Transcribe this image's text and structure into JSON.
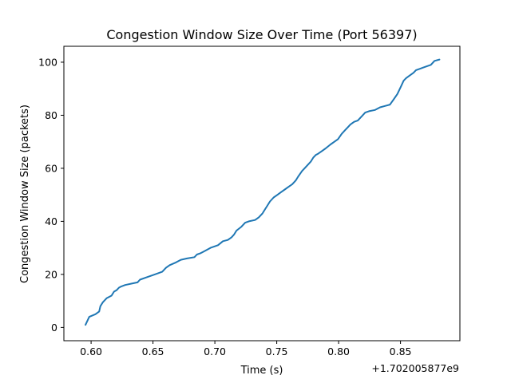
{
  "chart_data": {
    "type": "line",
    "title": "Congestion Window Size Over Time (Port 56397)",
    "xlabel": "Time (s)",
    "ylabel": "Congestion Window Size (packets)",
    "x_offset_label": "+1.702005877e9",
    "xlim": [
      0.578,
      0.898
    ],
    "ylim": [
      -5.0,
      106.0
    ],
    "x_ticks": [
      0.6,
      0.65,
      0.7,
      0.75,
      0.8,
      0.85
    ],
    "x_tick_labels": [
      "0.60",
      "0.65",
      "0.70",
      "0.75",
      "0.80",
      "0.85"
    ],
    "y_ticks": [
      0,
      20,
      40,
      60,
      80,
      100
    ],
    "y_tick_labels": [
      "0",
      "20",
      "40",
      "60",
      "80",
      "100"
    ],
    "grid": false,
    "series": [
      {
        "color": "#1f77b4",
        "x": [
          0.5955,
          0.5985,
          0.6035,
          0.6065,
          0.6075,
          0.6095,
          0.6125,
          0.6165,
          0.6185,
          0.6205,
          0.6225,
          0.6245,
          0.6275,
          0.6325,
          0.6375,
          0.6395,
          0.6455,
          0.6515,
          0.6575,
          0.6605,
          0.6635,
          0.6685,
          0.6725,
          0.6775,
          0.6835,
          0.6855,
          0.6885,
          0.6925,
          0.6965,
          0.7025,
          0.7065,
          0.7105,
          0.7135,
          0.7155,
          0.7175,
          0.7215,
          0.7245,
          0.7275,
          0.7325,
          0.7355,
          0.7385,
          0.7405,
          0.7425,
          0.7445,
          0.7475,
          0.7505,
          0.7535,
          0.7565,
          0.7595,
          0.7625,
          0.7655,
          0.7675,
          0.7705,
          0.7725,
          0.7755,
          0.7775,
          0.7795,
          0.7815,
          0.7835,
          0.7865,
          0.7895,
          0.7935,
          0.7965,
          0.7995,
          0.8025,
          0.8055,
          0.8075,
          0.8095,
          0.8125,
          0.8155,
          0.8185,
          0.8215,
          0.8245,
          0.8295,
          0.8335,
          0.8375,
          0.8415,
          0.8445,
          0.8475,
          0.8505,
          0.8525,
          0.8545,
          0.8575,
          0.8605,
          0.8625,
          0.8655,
          0.8685,
          0.8715,
          0.8745,
          0.8775,
          0.8815
        ],
        "y": [
          1,
          4,
          5,
          6,
          8,
          9.5,
          11,
          12,
          13.5,
          14,
          15,
          15.5,
          16,
          16.5,
          17,
          18,
          19,
          20,
          21,
          22.5,
          23.5,
          24.5,
          25.5,
          26,
          26.5,
          27.5,
          28,
          29,
          30,
          31,
          32.5,
          33,
          34,
          35,
          36.5,
          38,
          39.5,
          40,
          40.5,
          41.5,
          43,
          44.5,
          46,
          47.5,
          49,
          50,
          51,
          52,
          53,
          54,
          55.5,
          57,
          59,
          60,
          61.5,
          62.5,
          64,
          65,
          65.5,
          66.5,
          67.5,
          69,
          70,
          71,
          73,
          74.5,
          75.5,
          76.5,
          77.5,
          78,
          79.5,
          81,
          81.5,
          82,
          83,
          83.5,
          84,
          86,
          88,
          91,
          93,
          94,
          95,
          96,
          97,
          97.5,
          98,
          98.5,
          99,
          100.5,
          101
        ]
      }
    ]
  }
}
